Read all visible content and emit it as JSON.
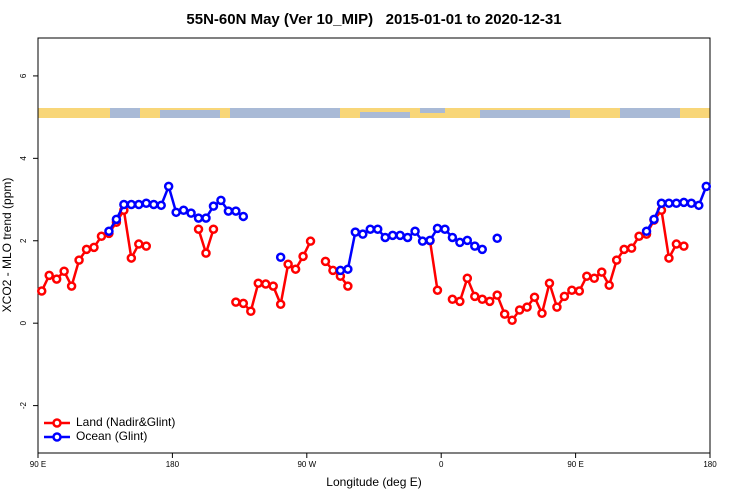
{
  "chart_data": {
    "type": "line",
    "title": "55N-60N May (Ver 10_MIP)   2015-01-01 to 2020-12-31",
    "x_label": "Longitude (deg E)",
    "y_label": "XCO2 - MLO trend (ppm)",
    "xlim": [
      90,
      540
    ],
    "ylim": [
      -3.15,
      6.92
    ],
    "xticks": [
      {
        "value": 90,
        "label": "90 E"
      },
      180,
      {
        "value": 270,
        "label": "90 W"
      },
      {
        "value": 360,
        "label": "0"
      },
      {
        "value": 450,
        "label": "90 E"
      },
      {
        "value": 540,
        "label": "180"
      }
    ],
    "yticks": [
      -2,
      0,
      2,
      4,
      6
    ],
    "legend": "bottom-left",
    "x": [
      92.5,
      97.5,
      102.5,
      107.5,
      112.5,
      117.5,
      122.5,
      127.5,
      132.5,
      137.5,
      142.5,
      147.5,
      152.5,
      157.5,
      162.5,
      167.5,
      172.5,
      177.5,
      182.5,
      187.5,
      192.5,
      197.5,
      202.5,
      207.5,
      212.5,
      217.5,
      222.5,
      227.5,
      232.5,
      237.5,
      242.5,
      247.5,
      252.5,
      257.5,
      262.5,
      267.5,
      272.5,
      277.5,
      282.5,
      287.5,
      292.5,
      297.5,
      302.5,
      307.5,
      312.5,
      317.5,
      322.5,
      327.5,
      332.5,
      337.5,
      342.5,
      347.5,
      352.5,
      357.5,
      362.5,
      367.5,
      372.5,
      377.5,
      382.5,
      387.5,
      392.5,
      397.5,
      402.5,
      407.5,
      412.5,
      417.5,
      422.5,
      427.5,
      432.5,
      437.5,
      442.5,
      447.5,
      452.5,
      457.5,
      462.5,
      467.5,
      472.5,
      477.5,
      482.5,
      487.5,
      492.5,
      497.5,
      502.5,
      507.5,
      512.5,
      517.5,
      522.5,
      527.5,
      532.5,
      537.5
    ],
    "series": [
      {
        "name": "Land (Nadir&Glint)",
        "color": "#ff0000",
        "values": [
          0.78,
          1.16,
          1.07,
          1.26,
          0.9,
          1.53,
          1.79,
          1.84,
          2.11,
          2.18,
          2.45,
          2.74,
          1.58,
          1.92,
          1.87,
          null,
          null,
          null,
          null,
          null,
          null,
          2.28,
          1.7,
          2.28,
          null,
          null,
          0.51,
          0.48,
          0.29,
          0.97,
          0.95,
          0.9,
          0.46,
          1.43,
          1.31,
          1.62,
          1.99,
          null,
          1.5,
          1.28,
          1.14,
          0.9,
          null,
          null,
          null,
          null,
          null,
          null,
          null,
          null,
          null,
          null,
          2.0,
          0.8,
          null,
          0.58,
          0.53,
          1.09,
          0.65,
          0.58,
          0.53,
          0.68,
          0.22,
          0.07,
          0.32,
          0.39,
          0.63,
          0.24,
          0.97,
          0.39,
          0.65,
          0.8,
          0.78,
          1.14,
          1.09,
          1.24,
          0.92,
          1.53,
          1.79,
          1.82,
          2.11,
          2.16,
          2.5,
          2.74,
          1.58,
          1.92,
          1.87,
          null,
          null,
          null
        ]
      },
      {
        "name": "Ocean (Glint)",
        "color": "#0000ff",
        "values": [
          null,
          null,
          null,
          null,
          null,
          null,
          null,
          null,
          null,
          2.23,
          2.52,
          2.88,
          2.88,
          2.88,
          2.91,
          2.88,
          2.86,
          3.32,
          2.69,
          2.74,
          2.67,
          2.55,
          2.55,
          2.84,
          2.98,
          2.72,
          2.72,
          2.59,
          null,
          null,
          null,
          null,
          1.6,
          null,
          null,
          null,
          null,
          null,
          null,
          null,
          1.28,
          1.31,
          2.21,
          2.16,
          2.28,
          2.28,
          2.08,
          2.13,
          2.13,
          2.08,
          2.23,
          1.99,
          2.01,
          2.3,
          2.28,
          2.08,
          1.96,
          2.01,
          1.87,
          1.79,
          null,
          2.06,
          null,
          null,
          null,
          null,
          null,
          null,
          null,
          null,
          null,
          null,
          null,
          null,
          null,
          null,
          null,
          null,
          null,
          null,
          null,
          2.23,
          2.52,
          2.91,
          2.91,
          2.91,
          2.93,
          2.91,
          2.86,
          3.32
        ]
      }
    ]
  }
}
